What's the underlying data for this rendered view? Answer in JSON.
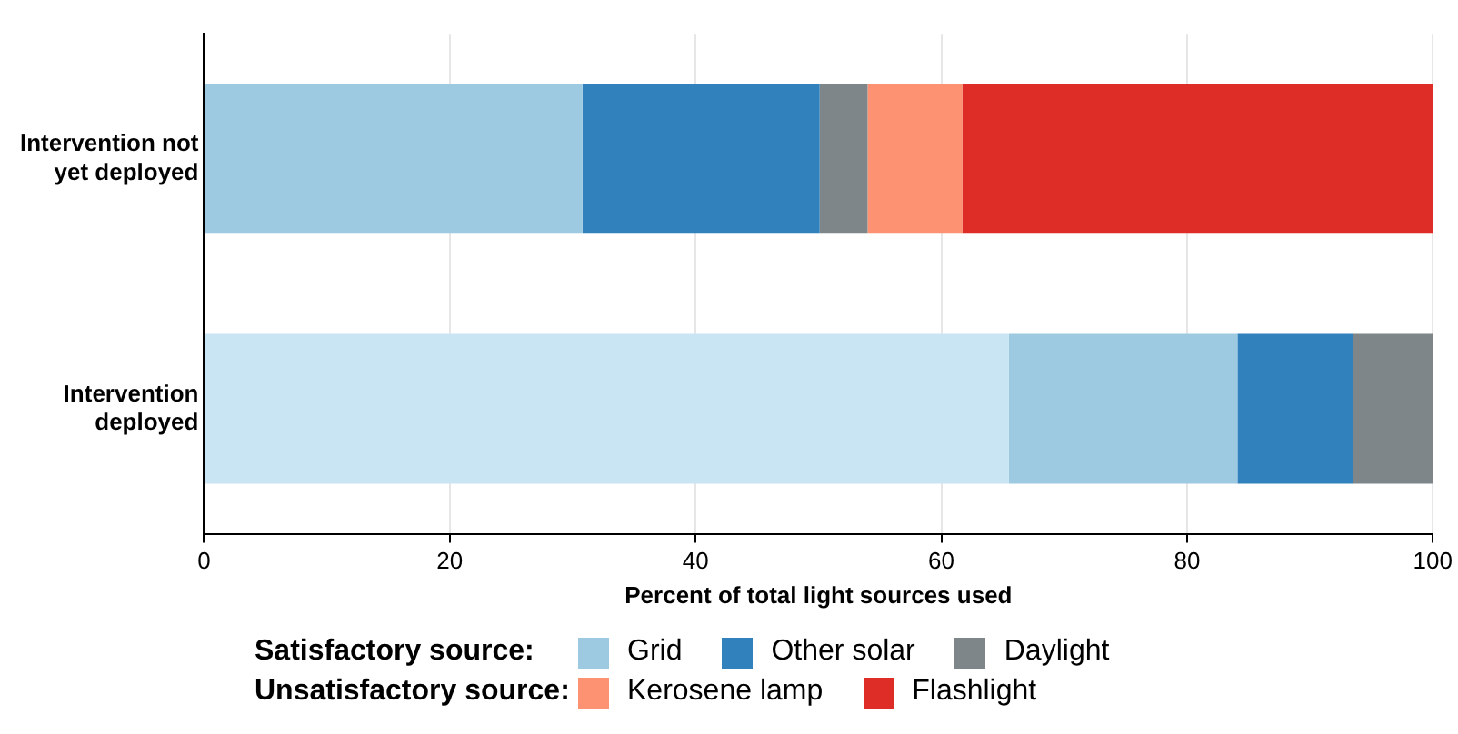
{
  "chart_data": {
    "type": "bar",
    "orientation": "horizontal",
    "stacked": true,
    "xlabel": "Percent of total light sources used",
    "categories": [
      "Intervention not yet deployed",
      "Intervention deployed"
    ],
    "series": [
      {
        "color": "#c9e4f2",
        "values": [
          null,
          65.5
        ]
      },
      {
        "name": "Grid",
        "color": "#9ecae1",
        "values": [
          30.8,
          18.6
        ]
      },
      {
        "name": "Other solar",
        "color": "#3181bd",
        "values": [
          19.3,
          9.4
        ]
      },
      {
        "name": "Daylight",
        "color": "#7f8689",
        "values": [
          3.9,
          6.5
        ]
      },
      {
        "name": "Kerosene lamp",
        "color": "#fc9272",
        "values": [
          7.7,
          null
        ]
      },
      {
        "name": "Flashlight",
        "color": "#de2d26",
        "values": [
          38.3,
          null
        ]
      }
    ],
    "xlim": [
      0,
      100
    ],
    "xticks": [
      0,
      20,
      40,
      60,
      80,
      100
    ],
    "grid": "x",
    "legend": "bottom",
    "annotations": [
      "Satisfactory source:",
      "Unsatisfactory source:"
    ]
  }
}
